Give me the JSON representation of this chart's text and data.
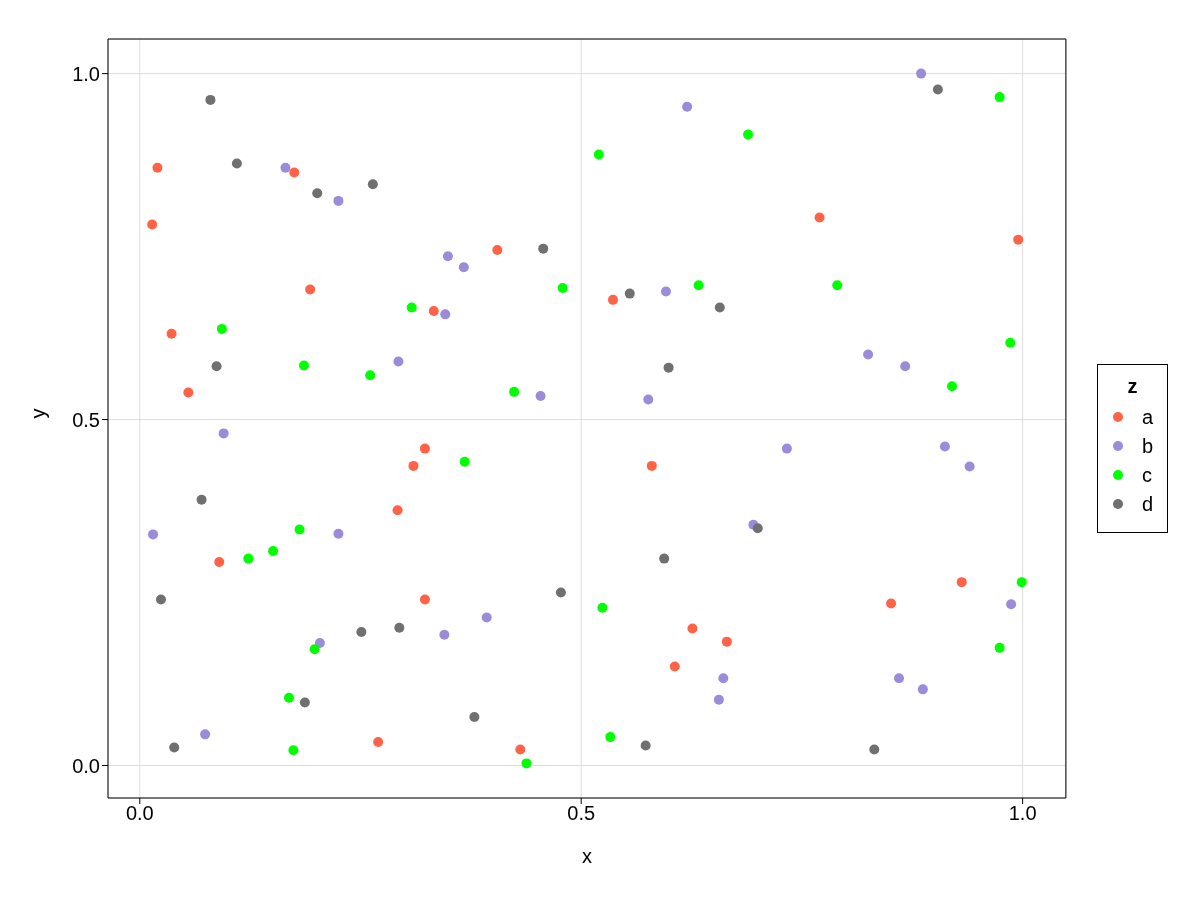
{
  "chart_data": {
    "type": "scatter",
    "xlabel": "x",
    "ylabel": "y",
    "legend_title": "z",
    "legend": "right",
    "grid": true,
    "marker": "circle",
    "xlim": [
      -0.036,
      1.049
    ],
    "ylim": [
      -0.047,
      1.05
    ],
    "xticks": [
      {
        "value": 0,
        "label": "0.0"
      },
      {
        "value": 0.5,
        "label": "0.5"
      },
      {
        "value": 1,
        "label": "1.0"
      }
    ],
    "yticks": [
      {
        "value": 0,
        "label": "0.0"
      },
      {
        "value": 0.5,
        "label": "0.5"
      },
      {
        "value": 1,
        "label": "1.0"
      }
    ],
    "series": [
      {
        "name": "a",
        "color": "#ff6347",
        "x": [
          0.014,
          0.036,
          0.055,
          0.02,
          0.175,
          0.193,
          0.09,
          0.333,
          0.405,
          0.323,
          0.31,
          0.292,
          0.323,
          0.27,
          0.431,
          0.536,
          0.58,
          0.626,
          0.665,
          0.606,
          0.77,
          0.995,
          0.851,
          0.931
        ],
        "values": [
          0.782,
          0.624,
          0.539,
          0.864,
          0.857,
          0.688,
          0.294,
          0.657,
          0.745,
          0.458,
          0.433,
          0.369,
          0.24,
          0.034,
          0.023,
          0.673,
          0.433,
          0.198,
          0.179,
          0.143,
          0.792,
          0.76,
          0.234,
          0.265
        ]
      },
      {
        "name": "b",
        "color": "#9b8bd8",
        "x": [
          0.015,
          0.095,
          0.074,
          0.165,
          0.225,
          0.204,
          0.225,
          0.293,
          0.349,
          0.346,
          0.345,
          0.393,
          0.367,
          0.454,
          0.576,
          0.596,
          0.62,
          0.695,
          0.661,
          0.656,
          0.733,
          0.825,
          0.867,
          0.885,
          0.912,
          0.94,
          0.987,
          0.86,
          0.887
        ],
        "values": [
          0.334,
          0.48,
          0.045,
          0.864,
          0.816,
          0.177,
          0.335,
          0.584,
          0.736,
          0.652,
          0.189,
          0.214,
          0.72,
          0.534,
          0.529,
          0.685,
          0.952,
          0.348,
          0.126,
          0.095,
          0.458,
          0.594,
          0.577,
          1.0,
          0.461,
          0.432,
          0.233,
          0.126,
          0.11
        ]
      },
      {
        "name": "c",
        "color": "#00ff00",
        "x": [
          0.093,
          0.186,
          0.261,
          0.308,
          0.424,
          0.368,
          0.479,
          0.52,
          0.633,
          0.689,
          0.79,
          0.92,
          0.986,
          0.974,
          0.181,
          0.151,
          0.123,
          0.198,
          0.169,
          0.174,
          0.524,
          0.438,
          0.533,
          0.974,
          0.999
        ],
        "values": [
          0.631,
          0.578,
          0.564,
          0.662,
          0.54,
          0.439,
          0.69,
          0.883,
          0.694,
          0.912,
          0.694,
          0.548,
          0.611,
          0.966,
          0.341,
          0.31,
          0.299,
          0.168,
          0.098,
          0.022,
          0.228,
          0.003,
          0.041,
          0.17,
          0.265
        ]
      },
      {
        "name": "d",
        "color": "#707070",
        "x": [
          0.08,
          0.11,
          0.201,
          0.264,
          0.087,
          0.07,
          0.024,
          0.039,
          0.187,
          0.251,
          0.294,
          0.379,
          0.457,
          0.477,
          0.555,
          0.599,
          0.657,
          0.594,
          0.7,
          0.573,
          0.832,
          0.904
        ],
        "values": [
          0.962,
          0.87,
          0.827,
          0.84,
          0.577,
          0.384,
          0.24,
          0.026,
          0.091,
          0.193,
          0.199,
          0.07,
          0.747,
          0.25,
          0.682,
          0.575,
          0.662,
          0.299,
          0.343,
          0.029,
          0.023,
          0.977
        ]
      }
    ]
  }
}
